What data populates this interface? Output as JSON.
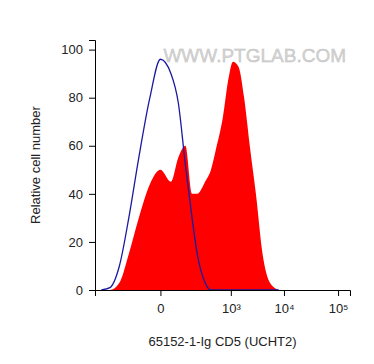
{
  "chart_data": {
    "type": "area",
    "x_label": "65152-1-Ig CD5 (UCHT2)",
    "y_label": "Relative cell number",
    "annotations": [
      "WWW.PTGLAB.COM"
    ],
    "log": "x",
    "x": [
      -600,
      -400,
      -250,
      -150,
      -80,
      -30,
      0,
      30,
      60,
      100,
      150,
      200,
      300,
      400,
      500,
      700,
      900,
      1100,
      1400,
      1800,
      2300,
      3000,
      4000,
      5500,
      8000
    ],
    "series": [
      {
        "type": "line",
        "color": "#1a1aa0",
        "values": [
          0,
          1,
          10,
          30,
          55,
          80,
          96,
          90,
          78,
          52,
          30,
          15,
          3,
          0,
          0,
          0,
          0,
          0,
          0,
          0,
          0,
          0,
          0,
          0,
          0
        ]
      },
      {
        "type": "area",
        "color": "#ff0000",
        "values": [
          0,
          0,
          3,
          15,
          30,
          44,
          50,
          45,
          55,
          60,
          40,
          40,
          45,
          50,
          58,
          72,
          88,
          95,
          93,
          80,
          60,
          40,
          15,
          3,
          0
        ]
      }
    ],
    "xlim": [
      -800,
      166000
    ],
    "xticks": [
      0,
      {
        "value": 1000,
        "label": "10³"
      },
      {
        "value": 10000,
        "label": "10⁴"
      },
      {
        "value": 100000,
        "label": "10⁵"
      }
    ],
    "ylim": [
      0,
      104
    ],
    "yticks": [
      0,
      20,
      40,
      60,
      80,
      100
    ]
  }
}
